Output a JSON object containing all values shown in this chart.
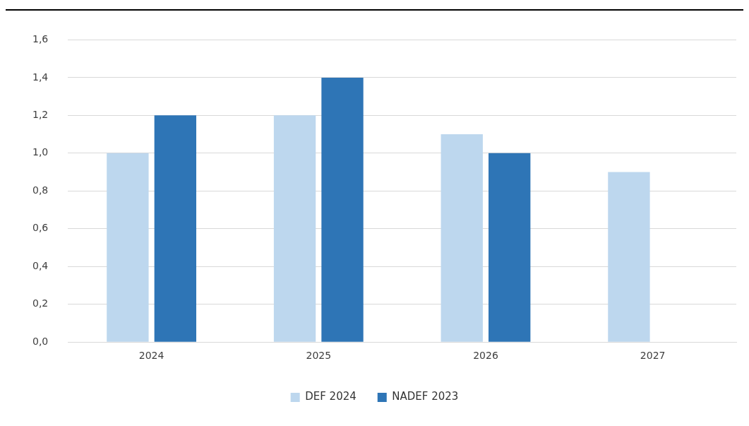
{
  "chart_data": {
    "type": "bar",
    "categories": [
      "2024",
      "2025",
      "2026",
      "2027"
    ],
    "series": [
      {
        "name": "DEF 2024",
        "color": "#bdd7ee",
        "values": [
          1.0,
          1.2,
          1.1,
          0.9
        ]
      },
      {
        "name": "NADEF 2023",
        "color": "#2e75b6",
        "values": [
          1.2,
          1.4,
          1.0,
          null
        ]
      }
    ],
    "ylim": [
      0,
      1.6
    ],
    "yticks": [
      {
        "value": 0,
        "label": "0,0"
      },
      {
        "value": 0.2,
        "label": "0,2"
      },
      {
        "value": 0.4,
        "label": "0,4"
      },
      {
        "value": 0.6,
        "label": "0,6"
      },
      {
        "value": 0.8,
        "label": "0,8"
      },
      {
        "value": 1.0,
        "label": "1,0"
      },
      {
        "value": 1.2,
        "label": "1,2"
      },
      {
        "value": 1.4,
        "label": "1,4"
      },
      {
        "value": 1.6,
        "label": "1,6"
      }
    ],
    "grid": "y",
    "legend": "bottom"
  }
}
